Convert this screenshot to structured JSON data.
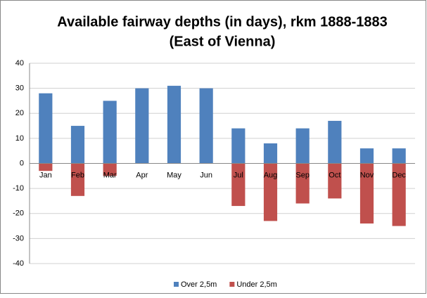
{
  "chart_data": {
    "type": "bar",
    "stacked": true,
    "title": [
      "Available fairway depths (in days), rkm 1888-1883",
      "(East of Vienna)"
    ],
    "categories": [
      "Jan",
      "Feb",
      "Mar",
      "Apr",
      "May",
      "Jun",
      "Jul",
      "Aug",
      "Sep",
      "Oct",
      "Nov",
      "Dec"
    ],
    "series": [
      {
        "name": "Over 2,5m",
        "color": "#4f81bd",
        "values": [
          28,
          15,
          25,
          30,
          31,
          30,
          14,
          8,
          14,
          17,
          6,
          6
        ]
      },
      {
        "name": "Under 2,5m",
        "color": "#c0504d",
        "values": [
          -3,
          -13,
          -5,
          0,
          0,
          0,
          -17,
          -23,
          -16,
          -14,
          -24,
          -25
        ]
      }
    ],
    "ylim": [
      -40,
      40
    ],
    "yticks": [
      -40,
      -30,
      -20,
      -10,
      0,
      10,
      20,
      30,
      40
    ],
    "grid": true,
    "legend": "bottom"
  }
}
